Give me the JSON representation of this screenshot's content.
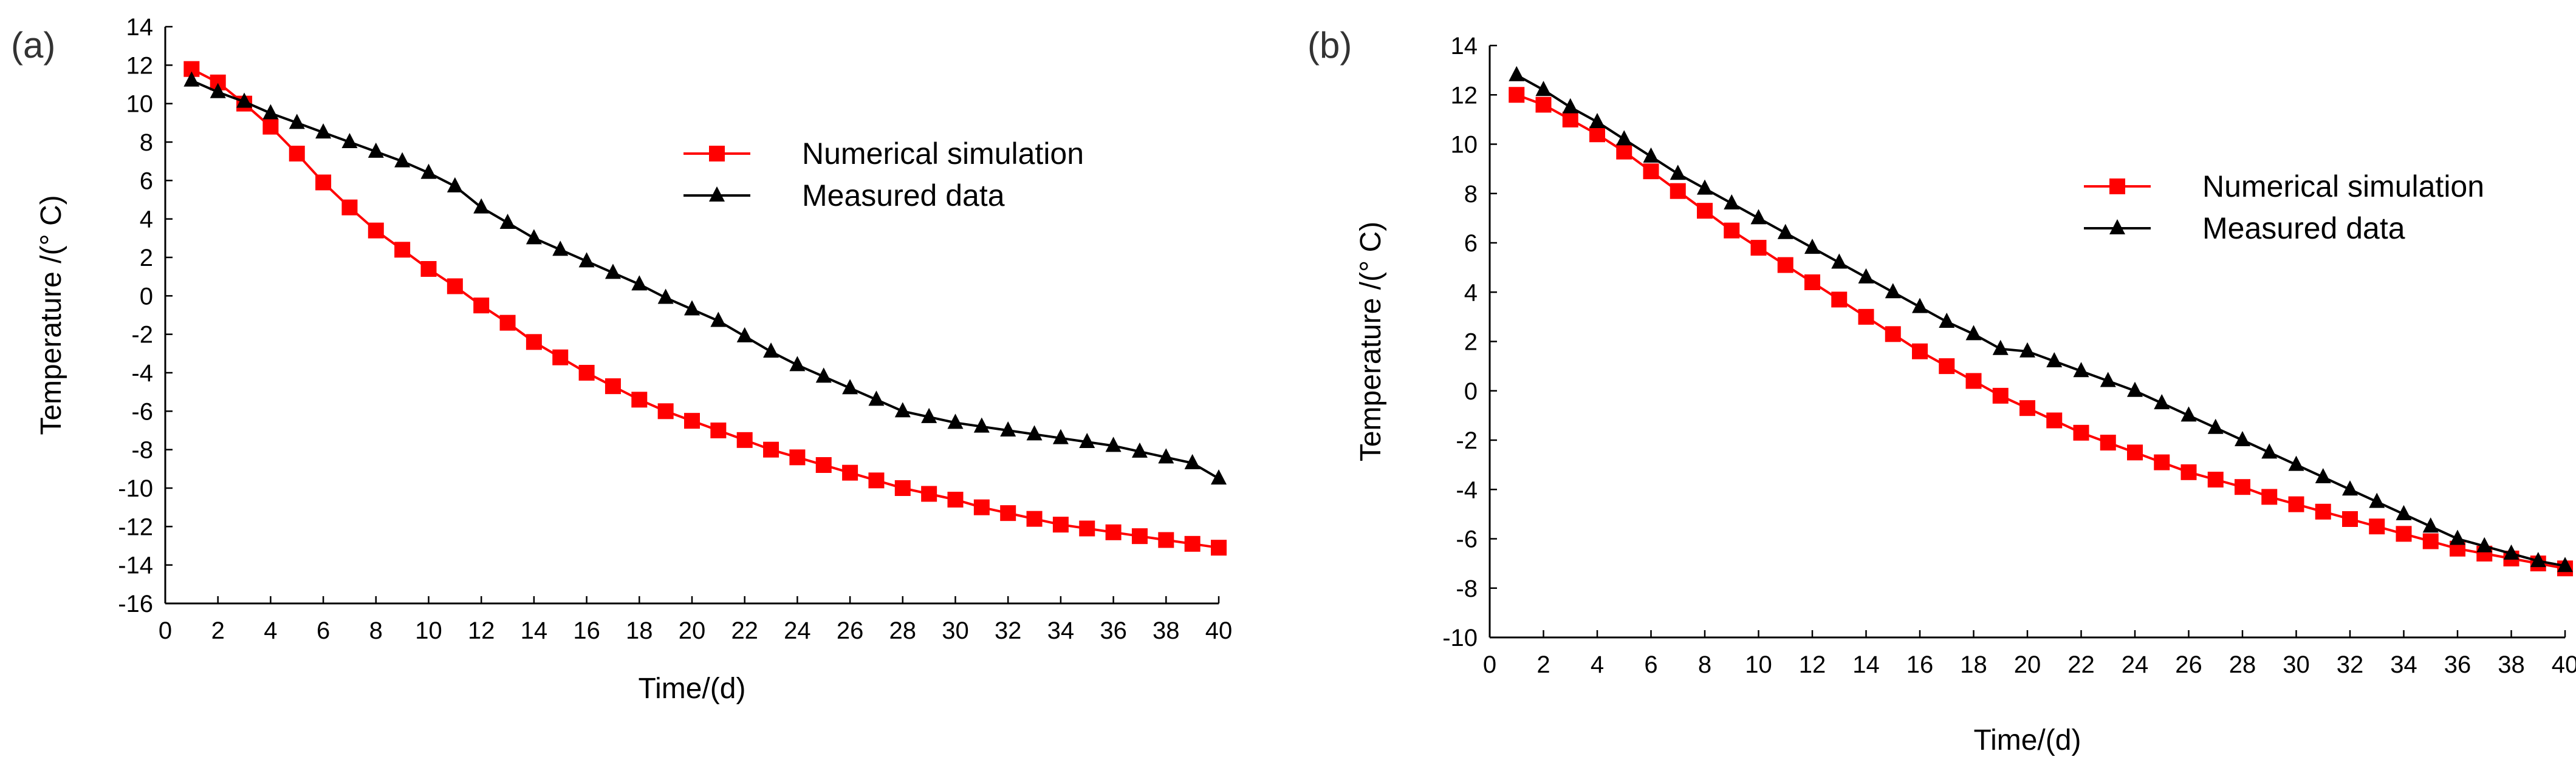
{
  "chart_data": [
    {
      "panel_label": "(a)",
      "type": "line",
      "xlabel": "Time/(d)",
      "ylabel": "Temperature /(° C)",
      "xlim": [
        0,
        40
      ],
      "ylim": [
        -16,
        14
      ],
      "xticks": [
        0,
        2,
        4,
        6,
        8,
        10,
        12,
        14,
        16,
        18,
        20,
        22,
        24,
        26,
        28,
        30,
        32,
        34,
        36,
        38,
        40
      ],
      "yticks": [
        -16,
        -14,
        -12,
        -10,
        -8,
        -6,
        -4,
        -2,
        0,
        2,
        4,
        6,
        8,
        10,
        12,
        14
      ],
      "grid": false,
      "legend_position": "top-right",
      "x": [
        1,
        2,
        3,
        4,
        5,
        6,
        7,
        8,
        9,
        10,
        11,
        12,
        13,
        14,
        15,
        16,
        17,
        18,
        19,
        20,
        21,
        22,
        23,
        24,
        25,
        26,
        27,
        28,
        29,
        30,
        31,
        32,
        33,
        34,
        35,
        36,
        37,
        38,
        39,
        40
      ],
      "series": [
        {
          "name": "Numerical simulation",
          "color": "#ff0000",
          "marker": "square",
          "values": [
            11.8,
            11.1,
            10.0,
            8.8,
            7.4,
            5.9,
            4.6,
            3.4,
            2.4,
            1.4,
            0.5,
            -0.5,
            -1.4,
            -2.4,
            -3.2,
            -4.0,
            -4.7,
            -5.4,
            -6.0,
            -6.5,
            -7.0,
            -7.5,
            -8.0,
            -8.4,
            -8.8,
            -9.2,
            -9.6,
            -10.0,
            -10.3,
            -10.6,
            -11.0,
            -11.3,
            -11.6,
            -11.9,
            -12.1,
            -12.3,
            -12.5,
            -12.7,
            -12.9,
            -13.1
          ]
        },
        {
          "name": "Measured data",
          "color": "#000000",
          "marker": "triangle",
          "values": [
            11.2,
            10.6,
            10.1,
            9.5,
            9.0,
            8.5,
            8.0,
            7.5,
            7.0,
            6.4,
            5.7,
            4.6,
            3.8,
            3.0,
            2.4,
            1.8,
            1.2,
            0.6,
            -0.1,
            -0.7,
            -1.3,
            -2.1,
            -2.9,
            -3.6,
            -4.2,
            -4.8,
            -5.4,
            -6.0,
            -6.3,
            -6.6,
            -6.8,
            -7.0,
            -7.2,
            -7.4,
            -7.6,
            -7.8,
            -8.1,
            -8.4,
            -8.7,
            -9.5
          ]
        }
      ]
    },
    {
      "panel_label": "(b)",
      "type": "line",
      "xlabel": "Time/(d)",
      "ylabel": "Temperature /(° C)",
      "xlim": [
        0,
        40
      ],
      "ylim": [
        -10,
        14
      ],
      "xticks": [
        0,
        2,
        4,
        6,
        8,
        10,
        12,
        14,
        16,
        18,
        20,
        22,
        24,
        26,
        28,
        30,
        32,
        34,
        36,
        38,
        40
      ],
      "yticks": [
        -10,
        -8,
        -6,
        -4,
        -2,
        0,
        2,
        4,
        6,
        8,
        10,
        12,
        14
      ],
      "grid": false,
      "legend_position": "top-right",
      "x": [
        1,
        2,
        3,
        4,
        5,
        6,
        7,
        8,
        9,
        10,
        11,
        12,
        13,
        14,
        15,
        16,
        17,
        18,
        19,
        20,
        21,
        22,
        23,
        24,
        25,
        26,
        27,
        28,
        29,
        30,
        31,
        32,
        33,
        34,
        35,
        36,
        37,
        38,
        39,
        40
      ],
      "series": [
        {
          "name": "Numerical simulation",
          "color": "#ff0000",
          "marker": "square",
          "values": [
            12.0,
            11.6,
            11.0,
            10.4,
            9.7,
            8.9,
            8.1,
            7.3,
            6.5,
            5.8,
            5.1,
            4.4,
            3.7,
            3.0,
            2.3,
            1.6,
            1.0,
            0.4,
            -0.2,
            -0.7,
            -1.2,
            -1.7,
            -2.1,
            -2.5,
            -2.9,
            -3.3,
            -3.6,
            -3.9,
            -4.3,
            -4.6,
            -4.9,
            -5.2,
            -5.5,
            -5.8,
            -6.1,
            -6.4,
            -6.6,
            -6.8,
            -7.0,
            -7.2
          ]
        },
        {
          "name": "Measured data",
          "color": "#000000",
          "marker": "triangle",
          "values": [
            12.8,
            12.2,
            11.5,
            10.9,
            10.2,
            9.5,
            8.8,
            8.2,
            7.6,
            7.0,
            6.4,
            5.8,
            5.2,
            4.6,
            4.0,
            3.4,
            2.8,
            2.3,
            1.7,
            1.6,
            1.2,
            0.8,
            0.4,
            0.0,
            -0.5,
            -1.0,
            -1.5,
            -2.0,
            -2.5,
            -3.0,
            -3.5,
            -4.0,
            -4.5,
            -5.0,
            -5.5,
            -6.0,
            -6.3,
            -6.6,
            -6.9,
            -7.1
          ]
        }
      ]
    }
  ]
}
